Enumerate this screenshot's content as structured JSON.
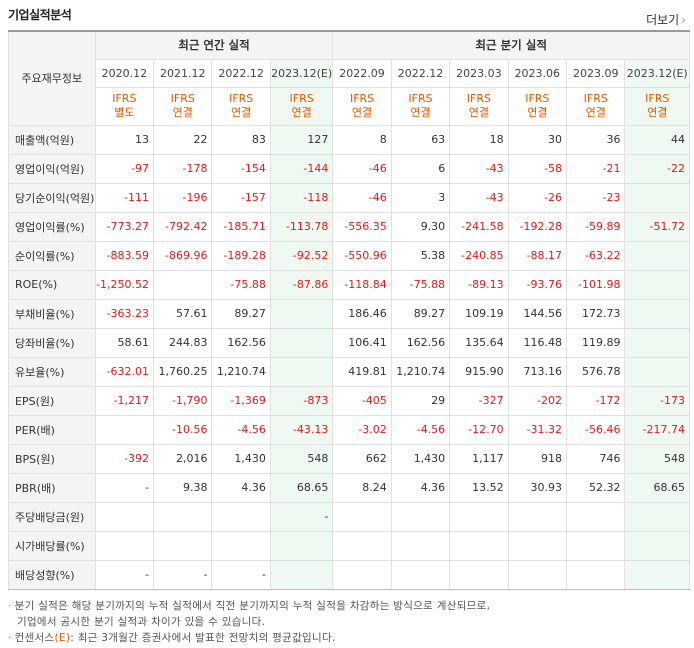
{
  "title": "기업실적분석",
  "more_label": "더보기",
  "header": {
    "corner_label": "주요재무정보",
    "annual_label": "최근 연간 실적",
    "quarter_label": "최근 분기 실적"
  },
  "periods": [
    {
      "date": "2020.12",
      "ifrs_top": "IFRS",
      "ifrs_bottom": "별도",
      "estimate": false
    },
    {
      "date": "2021.12",
      "ifrs_top": "IFRS",
      "ifrs_bottom": "연결",
      "estimate": false
    },
    {
      "date": "2022.12",
      "ifrs_top": "IFRS",
      "ifrs_bottom": "연결",
      "estimate": false
    },
    {
      "date": "2023.12(E)",
      "ifrs_top": "IFRS",
      "ifrs_bottom": "연결",
      "estimate": true
    },
    {
      "date": "2022.09",
      "ifrs_top": "IFRS",
      "ifrs_bottom": "연결",
      "estimate": false
    },
    {
      "date": "2022.12",
      "ifrs_top": "IFRS",
      "ifrs_bottom": "연결",
      "estimate": false
    },
    {
      "date": "2023.03",
      "ifrs_top": "IFRS",
      "ifrs_bottom": "연결",
      "estimate": false
    },
    {
      "date": "2023.06",
      "ifrs_top": "IFRS",
      "ifrs_bottom": "연결",
      "estimate": false
    },
    {
      "date": "2023.09",
      "ifrs_top": "IFRS",
      "ifrs_bottom": "연결",
      "estimate": false
    },
    {
      "date": "2023.12(E)",
      "ifrs_top": "IFRS",
      "ifrs_bottom": "연결",
      "estimate": true
    }
  ],
  "rows": [
    {
      "label": "매출액(억원)",
      "group_start": true,
      "values": [
        "13",
        "22",
        "83",
        "127",
        "8",
        "63",
        "18",
        "30",
        "36",
        "44"
      ]
    },
    {
      "label": "영업이익(억원)",
      "group_start": false,
      "values": [
        "-97",
        "-178",
        "-154",
        "-144",
        "-46",
        "6",
        "-43",
        "-58",
        "-21",
        "-22"
      ]
    },
    {
      "label": "당기순이익(억원)",
      "group_start": false,
      "values": [
        "-111",
        "-196",
        "-157",
        "-118",
        "-46",
        "3",
        "-43",
        "-26",
        "-23",
        ""
      ]
    },
    {
      "label": "영업이익률(%)",
      "group_start": true,
      "values": [
        "-773.27",
        "-792.42",
        "-185.71",
        "-113.78",
        "-556.35",
        "9.30",
        "-241.58",
        "-192.28",
        "-59.89",
        "-51.72"
      ]
    },
    {
      "label": "순이익률(%)",
      "group_start": false,
      "values": [
        "-883.59",
        "-869.96",
        "-189.28",
        "-92.52",
        "-550.96",
        "5.38",
        "-240.85",
        "-88.17",
        "-63.22",
        ""
      ]
    },
    {
      "label": "ROE(%)",
      "group_start": false,
      "values": [
        "-1,250.52",
        "",
        "-75.88",
        "-87.86",
        "-118.84",
        "-75.88",
        "-89.13",
        "-93.76",
        "-101.98",
        ""
      ]
    },
    {
      "label": "부채비율(%)",
      "group_start": true,
      "values": [
        "-363.23",
        "57.61",
        "89.27",
        "",
        "186.46",
        "89.27",
        "109.19",
        "144.56",
        "172.73",
        ""
      ]
    },
    {
      "label": "당좌비율(%)",
      "group_start": false,
      "values": [
        "58.61",
        "244.83",
        "162.56",
        "",
        "106.41",
        "162.56",
        "135.64",
        "116.48",
        "119.89",
        ""
      ]
    },
    {
      "label": "유보율(%)",
      "group_start": false,
      "values": [
        "-632.01",
        "1,760.25",
        "1,210.74",
        "",
        "419.81",
        "1,210.74",
        "915.90",
        "713.16",
        "576.78",
        ""
      ]
    },
    {
      "label": "EPS(원)",
      "group_start": true,
      "values": [
        "-1,217",
        "-1,790",
        "-1,369",
        "-873",
        "-405",
        "29",
        "-327",
        "-202",
        "-172",
        "-173"
      ]
    },
    {
      "label": "PER(배)",
      "group_start": false,
      "values": [
        "",
        "-10.56",
        "-4.56",
        "-43.13",
        "-3.02",
        "-4.56",
        "-12.70",
        "-31.32",
        "-56.46",
        "-217.74"
      ]
    },
    {
      "label": "BPS(원)",
      "group_start": false,
      "values": [
        "-392",
        "2,016",
        "1,430",
        "548",
        "662",
        "1,430",
        "1,117",
        "918",
        "746",
        "548"
      ]
    },
    {
      "label": "PBR(배)",
      "group_start": false,
      "values": [
        "-",
        "9.38",
        "4.36",
        "68.65",
        "8.24",
        "4.36",
        "13.52",
        "30.93",
        "52.32",
        "68.65"
      ]
    },
    {
      "label": "주당배당금(원)",
      "group_start": true,
      "values": [
        "",
        "",
        "",
        "-",
        "",
        "",
        "",
        "",
        "",
        ""
      ]
    },
    {
      "label": "시가배당률(%)",
      "group_start": false,
      "values": [
        "",
        "",
        "",
        "",
        "",
        "",
        "",
        "",
        "",
        ""
      ]
    },
    {
      "label": "배당성향(%)",
      "group_start": false,
      "values": [
        "-",
        "-",
        "-",
        "",
        "",
        "",
        "",
        "",
        "",
        ""
      ]
    }
  ],
  "notes": {
    "line1": "분기 실적은 해당 분기까지의 누적 실적에서 직전 분기까지의 누적 실적을 차감하는 방식으로 계산되므로,",
    "line2": "기업에서 공시한 분기 실적과 차이가 있을 수 있습니다.",
    "line3_prefix": "컨센서스",
    "line3_e": "(E)",
    "line3_suffix": ": 최근 3개월간 증권사에서 발표한 전망치의 평균값입니다."
  },
  "colors": {
    "negative": "#e01a1a",
    "ifrs": "#e05a00",
    "estimate_bg": "#f0f9f1",
    "label_bg": "#f4f4f4"
  }
}
